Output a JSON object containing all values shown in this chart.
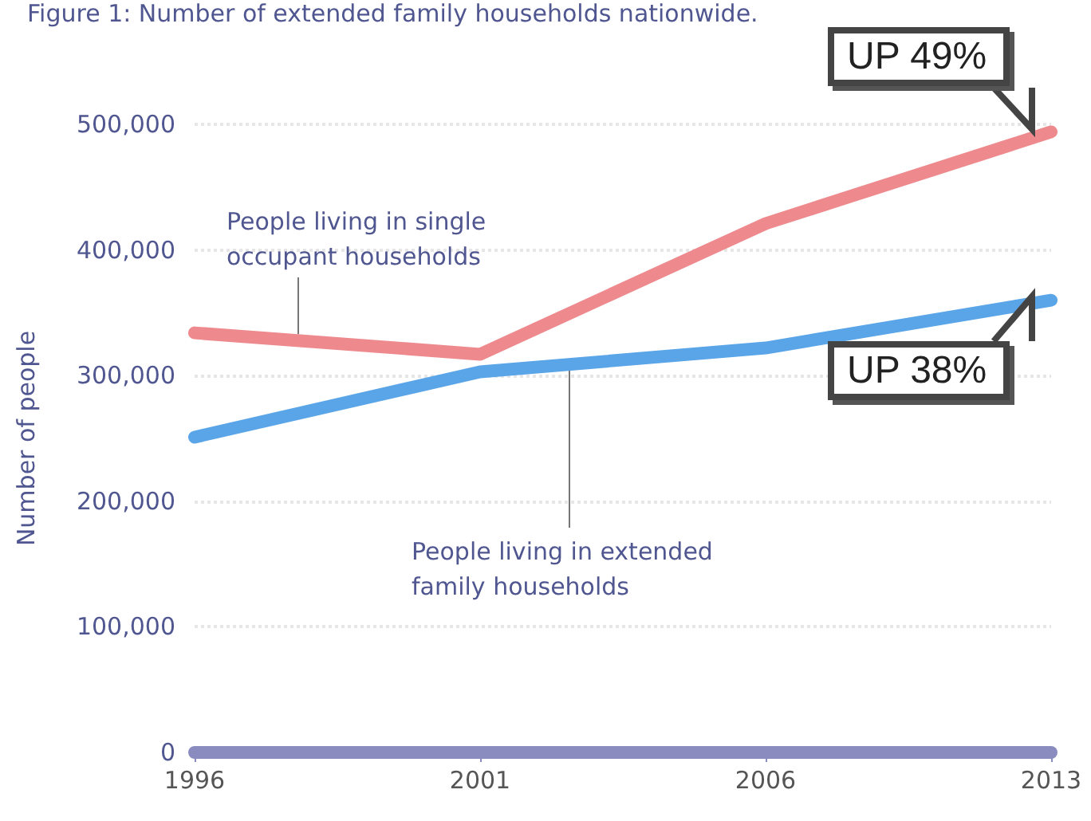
{
  "chart_data": {
    "type": "line",
    "title": "Figure 1: Number of extended family households nationwide.",
    "ylabel": "Number of people",
    "categories": [
      "1996",
      "2001",
      "2006",
      "2013"
    ],
    "series": [
      {
        "name": "People living in single occupant households",
        "color": "#ee8a8e",
        "values": [
          334000,
          317000,
          421000,
          494000
        ]
      },
      {
        "name": "People living in extended family households",
        "color": "#5aa5e8",
        "values": [
          251000,
          303000,
          322000,
          360000
        ]
      }
    ],
    "ylim": [
      0,
      500000
    ],
    "yticks": [
      {
        "value": 0,
        "label": "0"
      },
      {
        "value": 100000,
        "label": "100,000"
      },
      {
        "value": 200000,
        "label": "200,000"
      },
      {
        "value": 300000,
        "label": "300,000"
      },
      {
        "value": 400000,
        "label": "400,000"
      },
      {
        "value": 500000,
        "label": "500,000"
      }
    ],
    "annotations": [
      {
        "text": "UP 49%",
        "x": "2013",
        "y": 494000
      },
      {
        "text": "UP 38%",
        "x": "2013",
        "y": 360000
      }
    ],
    "grid": "y",
    "legend": false,
    "marker": "none",
    "line_style": "solid"
  }
}
